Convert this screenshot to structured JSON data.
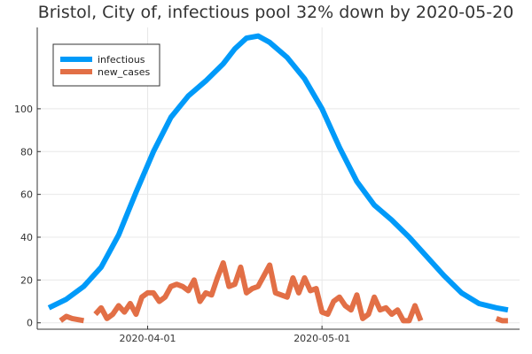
{
  "chart_data": {
    "type": "line",
    "title": "Bristol, City of, infectious pool 32% down by 2020-05-20",
    "xlabel": "",
    "ylabel": "",
    "x_ticks": [
      {
        "label": "2020-04-01",
        "date": "2020-04-01"
      },
      {
        "label": "2020-05-01",
        "date": "2020-05-01"
      }
    ],
    "y_ticks": [
      0,
      20,
      40,
      60,
      80,
      100
    ],
    "xlim": [
      "2020-03-13",
      "2020-06-04"
    ],
    "ylim": [
      -3,
      138
    ],
    "grid": true,
    "legend_position": "top-left",
    "series": [
      {
        "name": "infectious",
        "color": "#009af9",
        "points": [
          [
            "2020-03-15",
            7
          ],
          [
            "2020-03-18",
            11
          ],
          [
            "2020-03-21",
            17
          ],
          [
            "2020-03-24",
            26
          ],
          [
            "2020-03-27",
            41
          ],
          [
            "2020-03-30",
            61
          ],
          [
            "2020-04-02",
            80
          ],
          [
            "2020-04-05",
            96
          ],
          [
            "2020-04-08",
            106
          ],
          [
            "2020-04-11",
            113
          ],
          [
            "2020-04-14",
            121
          ],
          [
            "2020-04-16",
            128
          ],
          [
            "2020-04-18",
            133
          ],
          [
            "2020-04-20",
            134
          ],
          [
            "2020-04-22",
            131
          ],
          [
            "2020-04-25",
            124
          ],
          [
            "2020-04-28",
            114
          ],
          [
            "2020-05-01",
            100
          ],
          [
            "2020-05-04",
            82
          ],
          [
            "2020-05-07",
            66
          ],
          [
            "2020-05-10",
            55
          ],
          [
            "2020-05-13",
            48
          ],
          [
            "2020-05-16",
            40
          ],
          [
            "2020-05-19",
            31
          ],
          [
            "2020-05-22",
            22
          ],
          [
            "2020-05-25",
            14
          ],
          [
            "2020-05-28",
            9
          ],
          [
            "2020-05-31",
            7
          ],
          [
            "2020-06-02",
            6
          ]
        ]
      },
      {
        "name": "new_cases",
        "color": "#e26f46",
        "points": [
          [
            "2020-03-17",
            1
          ],
          [
            "2020-03-18",
            3
          ],
          [
            "2020-03-19",
            2
          ],
          [
            "2020-03-21",
            1
          ],
          null,
          [
            "2020-03-23",
            4
          ],
          [
            "2020-03-24",
            7
          ],
          [
            "2020-03-25",
            2
          ],
          [
            "2020-03-26",
            4
          ],
          [
            "2020-03-27",
            8
          ],
          [
            "2020-03-28",
            5
          ],
          [
            "2020-03-29",
            9
          ],
          [
            "2020-03-30",
            4
          ],
          [
            "2020-03-31",
            12
          ],
          [
            "2020-04-01",
            14
          ],
          [
            "2020-04-02",
            14
          ],
          [
            "2020-04-03",
            10
          ],
          [
            "2020-04-04",
            12
          ],
          [
            "2020-04-05",
            17
          ],
          [
            "2020-04-06",
            18
          ],
          [
            "2020-04-07",
            17
          ],
          [
            "2020-04-08",
            15
          ],
          [
            "2020-04-09",
            20
          ],
          [
            "2020-04-10",
            10
          ],
          [
            "2020-04-11",
            14
          ],
          [
            "2020-04-12",
            13
          ],
          [
            "2020-04-13",
            21
          ],
          [
            "2020-04-14",
            28
          ],
          [
            "2020-04-15",
            17
          ],
          [
            "2020-04-16",
            18
          ],
          [
            "2020-04-17",
            26
          ],
          [
            "2020-04-18",
            14
          ],
          [
            "2020-04-19",
            16
          ],
          [
            "2020-04-20",
            17
          ],
          [
            "2020-04-21",
            22
          ],
          [
            "2020-04-22",
            27
          ],
          [
            "2020-04-23",
            14
          ],
          [
            "2020-04-24",
            13
          ],
          [
            "2020-04-25",
            12
          ],
          [
            "2020-04-26",
            21
          ],
          [
            "2020-04-27",
            14
          ],
          [
            "2020-04-28",
            21
          ],
          [
            "2020-04-29",
            15
          ],
          [
            "2020-04-30",
            16
          ],
          [
            "2020-05-01",
            5
          ],
          [
            "2020-05-02",
            4
          ],
          [
            "2020-05-03",
            10
          ],
          [
            "2020-05-04",
            12
          ],
          [
            "2020-05-05",
            8
          ],
          [
            "2020-05-06",
            6
          ],
          [
            "2020-05-07",
            13
          ],
          [
            "2020-05-08",
            2
          ],
          [
            "2020-05-09",
            4
          ],
          [
            "2020-05-10",
            12
          ],
          [
            "2020-05-11",
            6
          ],
          [
            "2020-05-12",
            7
          ],
          [
            "2020-05-13",
            4
          ],
          [
            "2020-05-14",
            6
          ],
          [
            "2020-05-15",
            1
          ],
          [
            "2020-05-16",
            1
          ],
          [
            "2020-05-17",
            8
          ],
          [
            "2020-05-18",
            1
          ],
          null,
          [
            "2020-05-31",
            2
          ],
          [
            "2020-06-01",
            1
          ],
          [
            "2020-06-02",
            1
          ]
        ]
      }
    ]
  }
}
